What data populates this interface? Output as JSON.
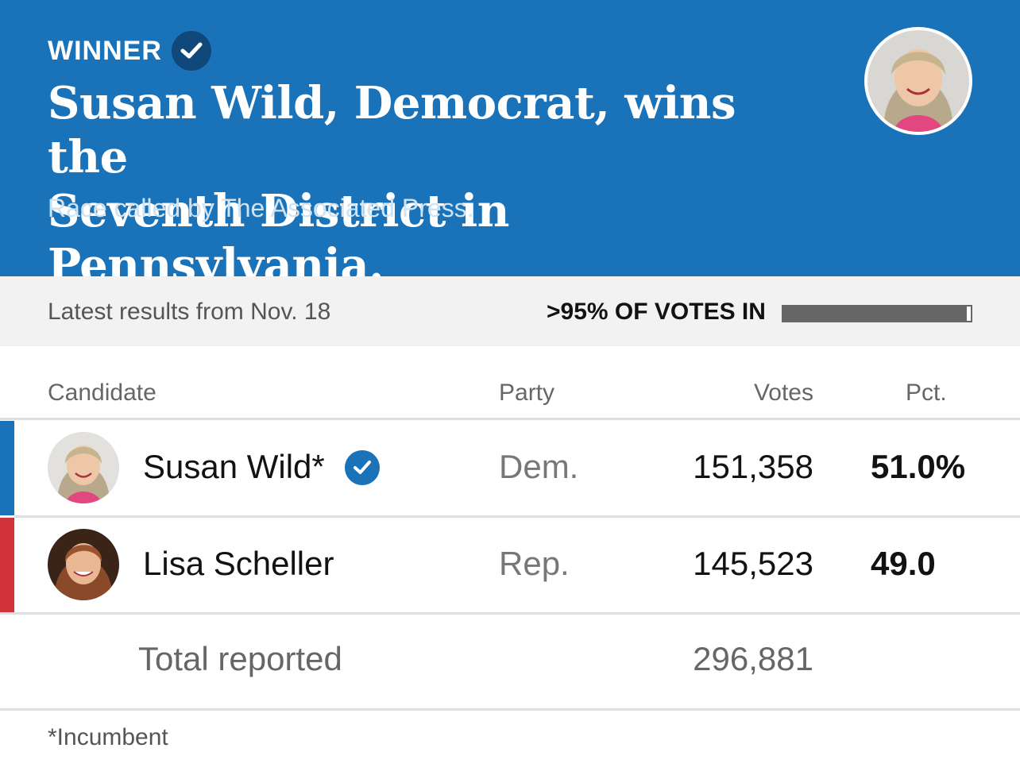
{
  "header": {
    "winner_label": "WINNER",
    "headline_line1": "Susan Wild, Democrat, wins the",
    "headline_line2": "Seventh District in Pennsylvania.",
    "subhead": "Race called by The Associated Press.",
    "background_color": "#1a73b8",
    "winner_icon": "check-circle-icon",
    "winner_photo": "Susan Wild"
  },
  "status": {
    "latest": "Latest results from Nov. 18",
    "votes_in": ">95% OF VOTES IN",
    "progress_fraction": 0.98
  },
  "table": {
    "columns": {
      "candidate": "Candidate",
      "party": "Party",
      "votes": "Votes",
      "pct": "Pct."
    },
    "rows": [
      {
        "name": "Susan Wild*",
        "party": "Dem.",
        "votes": "151,358",
        "pct": "51.0%",
        "party_color": "#1a73b8",
        "winner": true
      },
      {
        "name": "Lisa Scheller",
        "party": "Rep.",
        "votes": "145,523",
        "pct": "49.0",
        "party_color": "#d0343a",
        "winner": false
      }
    ],
    "total_label": "Total reported",
    "total_votes": "296,881"
  },
  "footnote": "*Incumbent"
}
